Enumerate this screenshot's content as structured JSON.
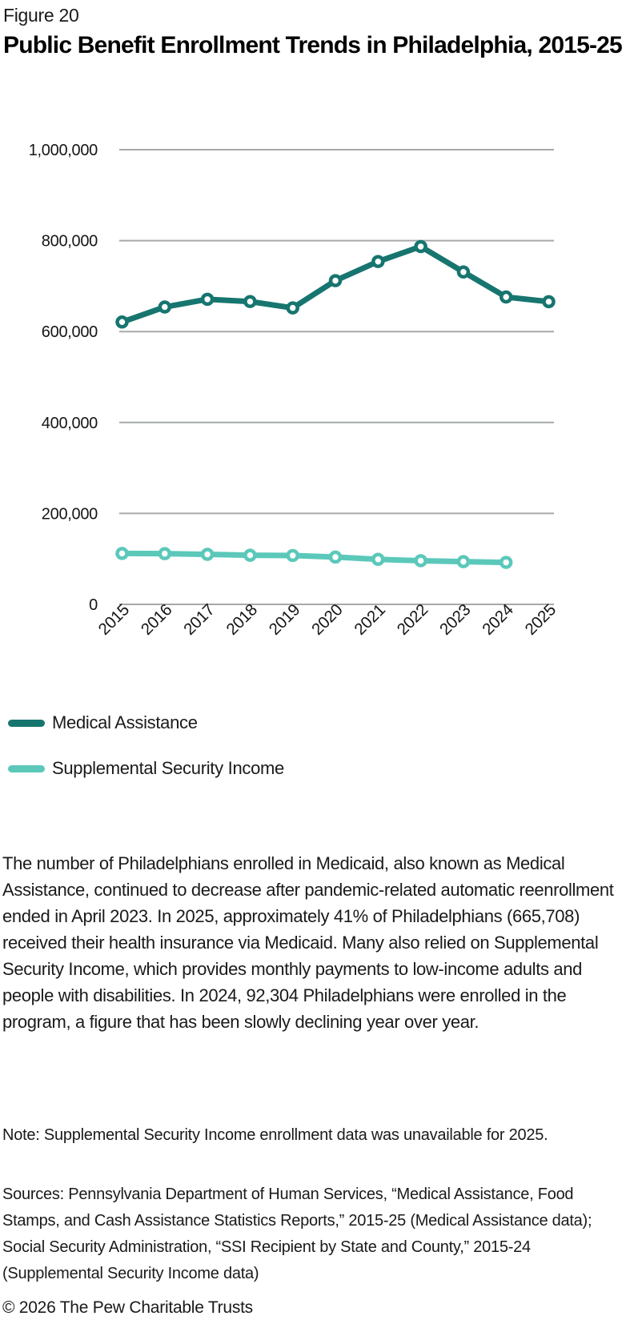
{
  "figure_label": "Figure 20",
  "title": "Public Benefit Enrollment Trends in Philadelphia, 2015-25",
  "chart_data": {
    "type": "line",
    "title": "Public Benefit Enrollment Trends in Philadelphia, 2015-25",
    "x": [
      "2015",
      "2016",
      "2017",
      "2018",
      "2019",
      "2020",
      "2021",
      "2022",
      "2023",
      "2024",
      "2025"
    ],
    "series": [
      {
        "name": "Medical Assistance",
        "color": "#17756f",
        "values": [
          621000,
          654000,
          671000,
          666000,
          652000,
          712000,
          754000,
          787000,
          731000,
          676000,
          665708
        ]
      },
      {
        "name": "Supplemental Security Income",
        "color": "#5bc8ba",
        "values": [
          112000,
          111500,
          110000,
          108000,
          107500,
          104000,
          99000,
          96000,
          94000,
          92304,
          null
        ]
      }
    ],
    "xlabel": "",
    "ylabel": "",
    "ylim": [
      0,
      1000000
    ],
    "yticks": [
      0,
      200000,
      400000,
      600000,
      800000,
      1000000
    ],
    "ytick_labels": [
      "0",
      "200,000",
      "400,000",
      "600,000",
      "800,000",
      "1,000,000"
    ],
    "grid": "horizontal",
    "gridline_color": "#a6a8aa",
    "xtick_rotation": 45,
    "marker": "open-circle",
    "legend_position": "below-left"
  },
  "legend": {
    "items": [
      {
        "label": "Medical Assistance",
        "color": "#17756f"
      },
      {
        "label": "Supplemental Security Income",
        "color": "#5bc8ba"
      }
    ]
  },
  "body_text": "The number of Philadelphians enrolled in Medicaid, also known as Medical Assistance, continued to decrease after pandemic-related automatic reenrollment ended in April 2023. In 2025, approximately 41% of Philadelphians (665,708) received their health insurance via Medicaid. Many also relied on Supplemental Security Income, which provides monthly payments to low-income adults and people with disabilities. In 2024, 92,304 Philadelphians were enrolled in the program, a figure that has been slowly declining year over year.",
  "note_text": "Note: Supplemental Security Income enrollment data was unavailable for 2025.",
  "sources_text": "Sources: Pennsylvania Department of Human Services, “Medical Assistance, Food Stamps, and Cash Assistance Statistics Reports,” 2015-25 (Medical Assistance data); Social Security Administration, “SSI Recipient by State and County,” 2015-24 (Supplemental Security Income data)",
  "footer_text": "© 2026 The Pew Charitable Trusts"
}
